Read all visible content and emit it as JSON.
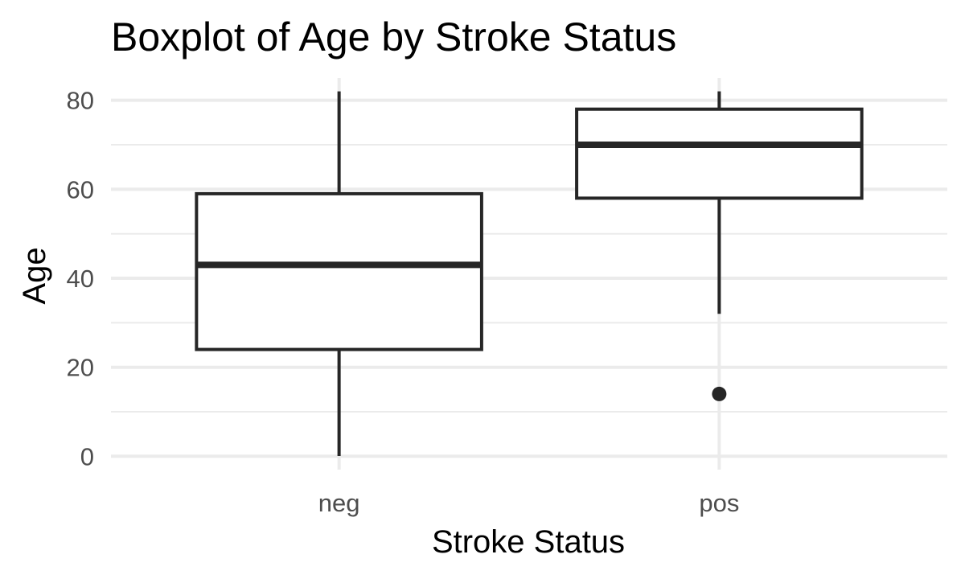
{
  "chart_data": {
    "type": "boxplot",
    "title": "Boxplot of Age by Stroke Status",
    "xlabel": "Stroke Status",
    "ylabel": "Age",
    "categories": [
      "neg",
      "pos"
    ],
    "boxes": [
      {
        "category": "neg",
        "whisker_low": 0.08,
        "q1": 24,
        "median": 43,
        "q3": 59,
        "whisker_high": 82,
        "outliers": []
      },
      {
        "category": "pos",
        "whisker_low": 32,
        "q1": 58,
        "median": 70,
        "q3": 78,
        "whisker_high": 82,
        "outliers": [
          14
        ]
      }
    ],
    "yticks": [
      0,
      20,
      40,
      60,
      80
    ],
    "ylim": [
      -3,
      85
    ],
    "grid": true,
    "legend": "none",
    "colors": {
      "box_stroke": "#262626",
      "grid": "#ebebeb",
      "tick_text": "#4d4d4d"
    }
  }
}
